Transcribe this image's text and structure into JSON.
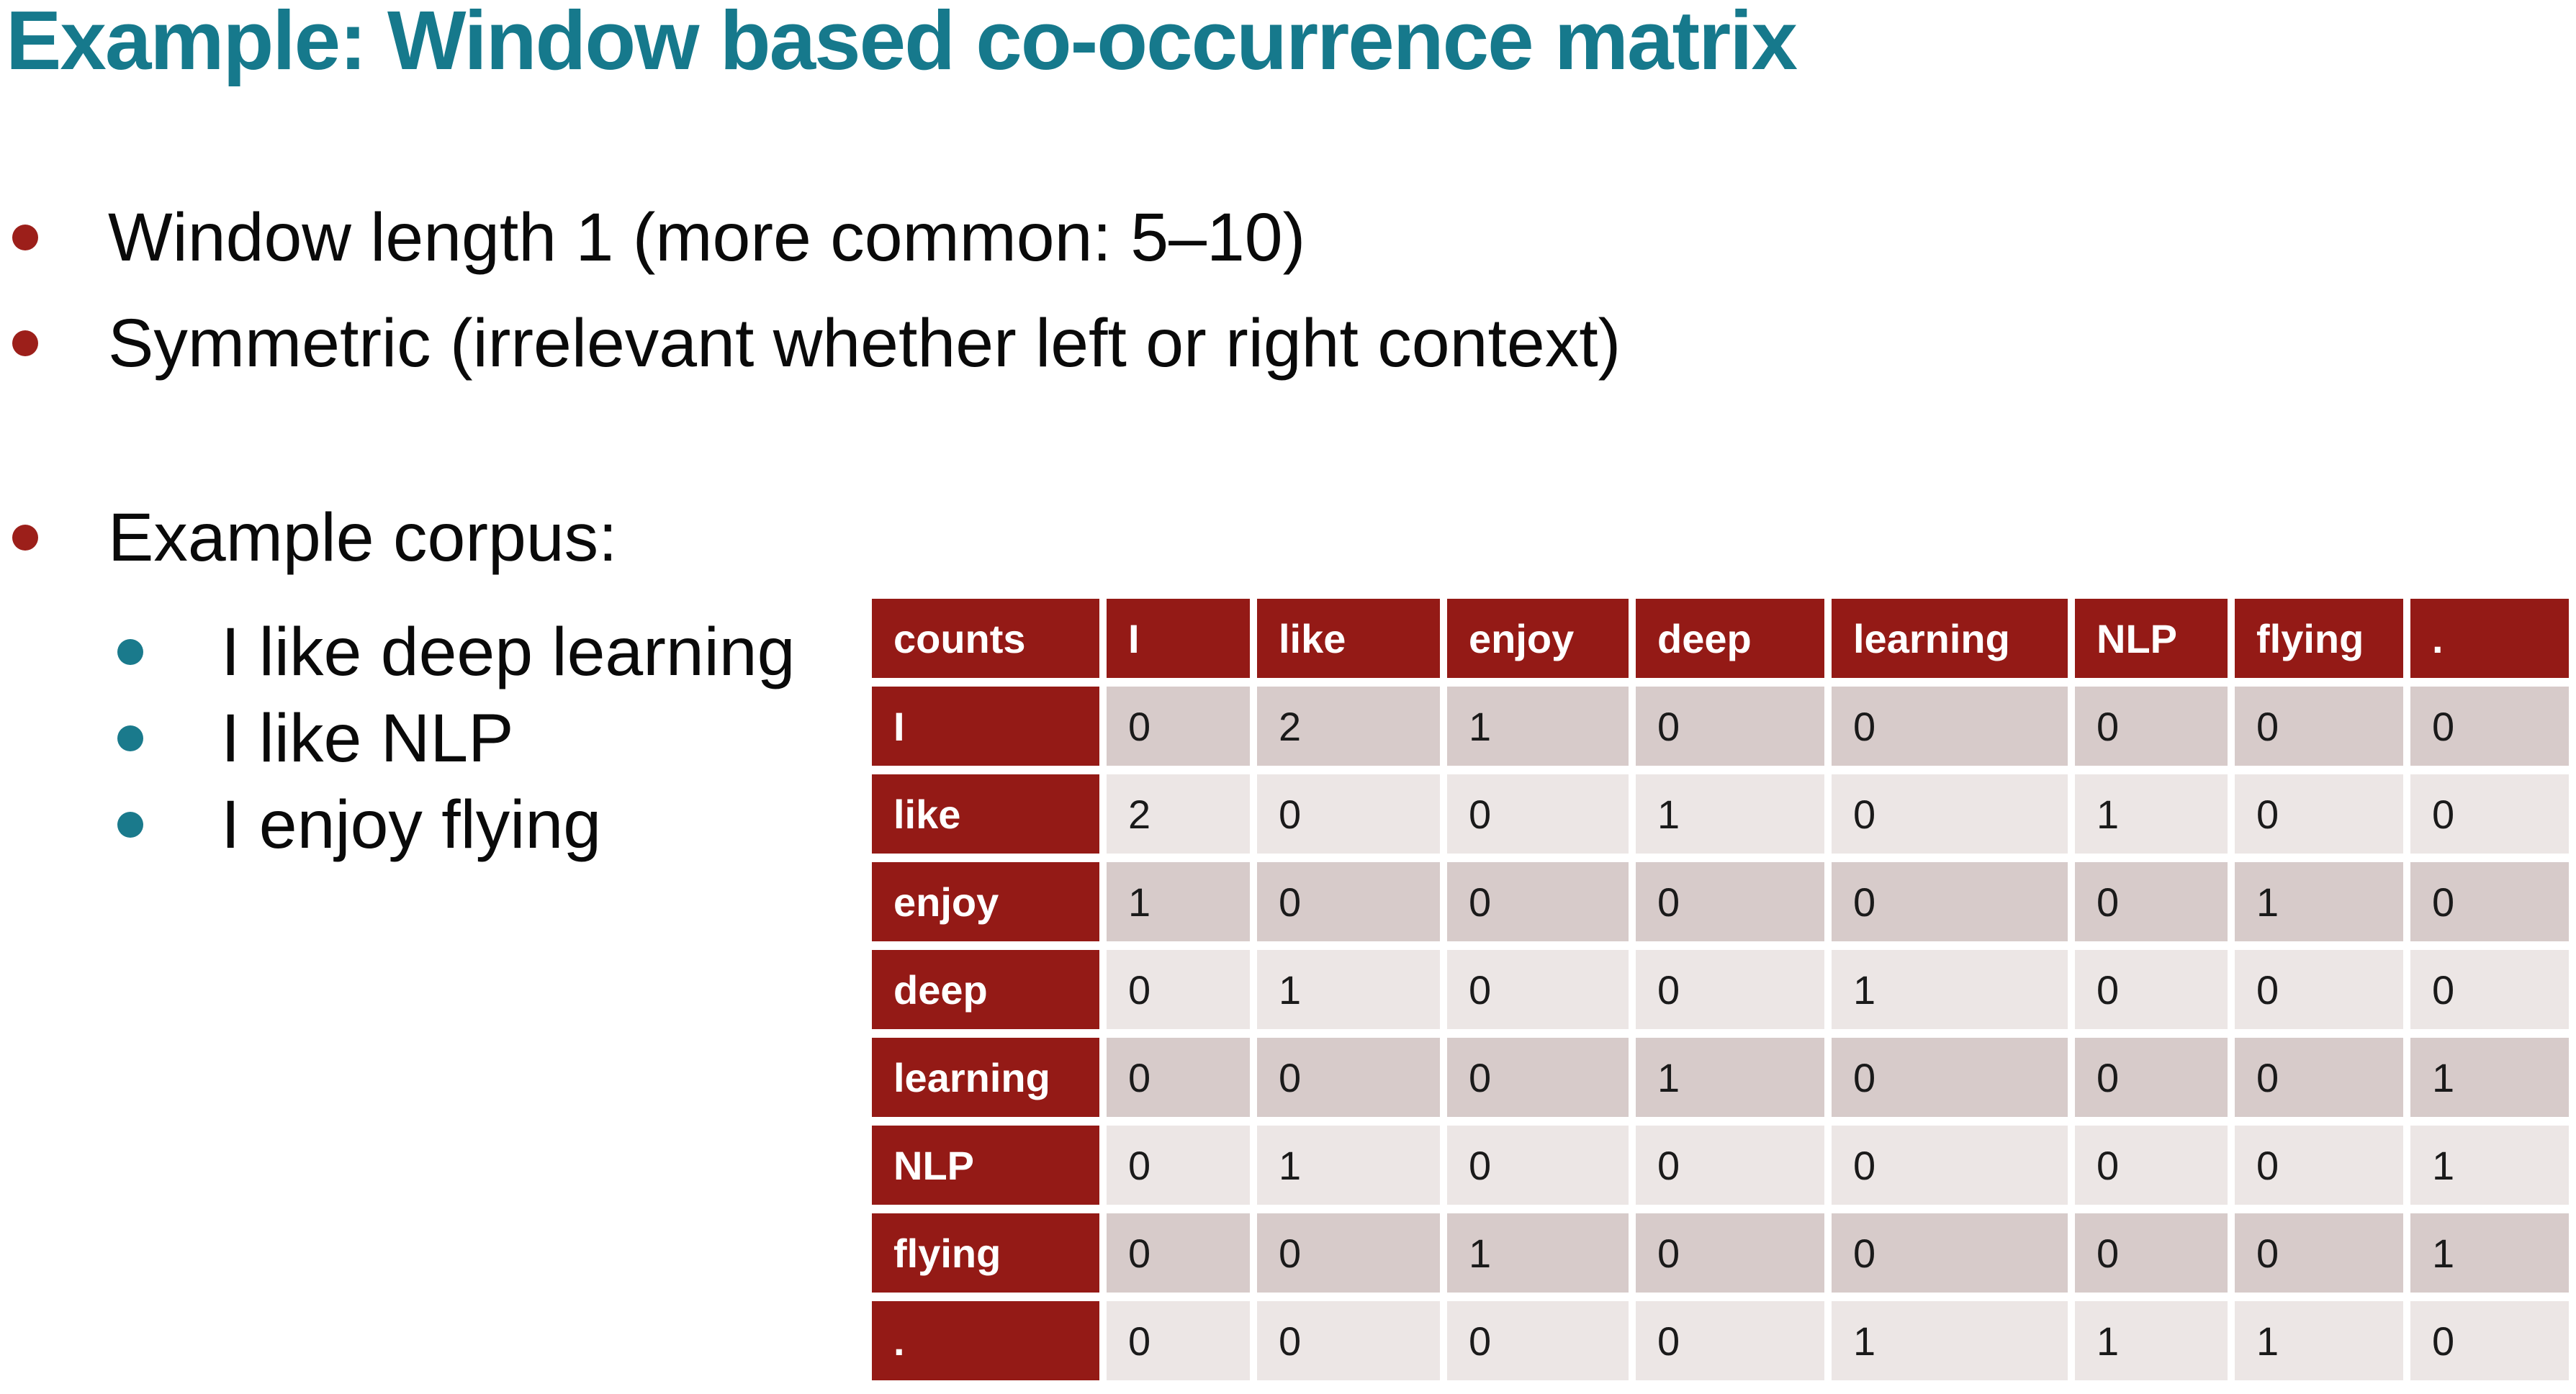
{
  "title": "Example: Window based co-occurrence matrix",
  "bullets": [
    {
      "level": 1,
      "text": "Window length 1 (more common: 5–10)"
    },
    {
      "level": 1,
      "text": "Symmetric (irrelevant whether left or right context)"
    },
    {
      "level": 1,
      "text": "Example corpus:"
    },
    {
      "level": 2,
      "text": "I like deep learning"
    },
    {
      "level": 2,
      "text": "I like NLP"
    },
    {
      "level": 2,
      "text": "I enjoy flying"
    }
  ],
  "table": {
    "header": [
      "counts",
      "I",
      "like",
      "enjoy",
      "deep",
      "learning",
      "NLP",
      "flying",
      "."
    ],
    "rows": [
      {
        "label": "I",
        "values": [
          "0",
          "2",
          "1",
          "0",
          "0",
          "0",
          "0",
          "0"
        ]
      },
      {
        "label": "like",
        "values": [
          "2",
          "0",
          "0",
          "1",
          "0",
          "1",
          "0",
          "0"
        ]
      },
      {
        "label": "enjoy",
        "values": [
          "1",
          "0",
          "0",
          "0",
          "0",
          "0",
          "1",
          "0"
        ]
      },
      {
        "label": "deep",
        "values": [
          "0",
          "1",
          "0",
          "0",
          "1",
          "0",
          "0",
          "0"
        ]
      },
      {
        "label": "learning",
        "values": [
          "0",
          "0",
          "0",
          "1",
          "0",
          "0",
          "0",
          "1"
        ]
      },
      {
        "label": "NLP",
        "values": [
          "0",
          "1",
          "0",
          "0",
          "0",
          "0",
          "0",
          "1"
        ]
      },
      {
        "label": "flying",
        "values": [
          "0",
          "0",
          "1",
          "0",
          "0",
          "0",
          "0",
          "1"
        ]
      },
      {
        "label": ".",
        "values": [
          "0",
          "0",
          "0",
          "0",
          "1",
          "1",
          "1",
          "0"
        ]
      }
    ]
  },
  "colors": {
    "title_teal": "#16798C",
    "bullet_red": "#9C1F1A",
    "bullet_teal": "#1A7A8C",
    "table_header_red": "#941A16",
    "row_dark_bg": "#D7CBCA",
    "row_light_bg": "#ECE6E5"
  }
}
